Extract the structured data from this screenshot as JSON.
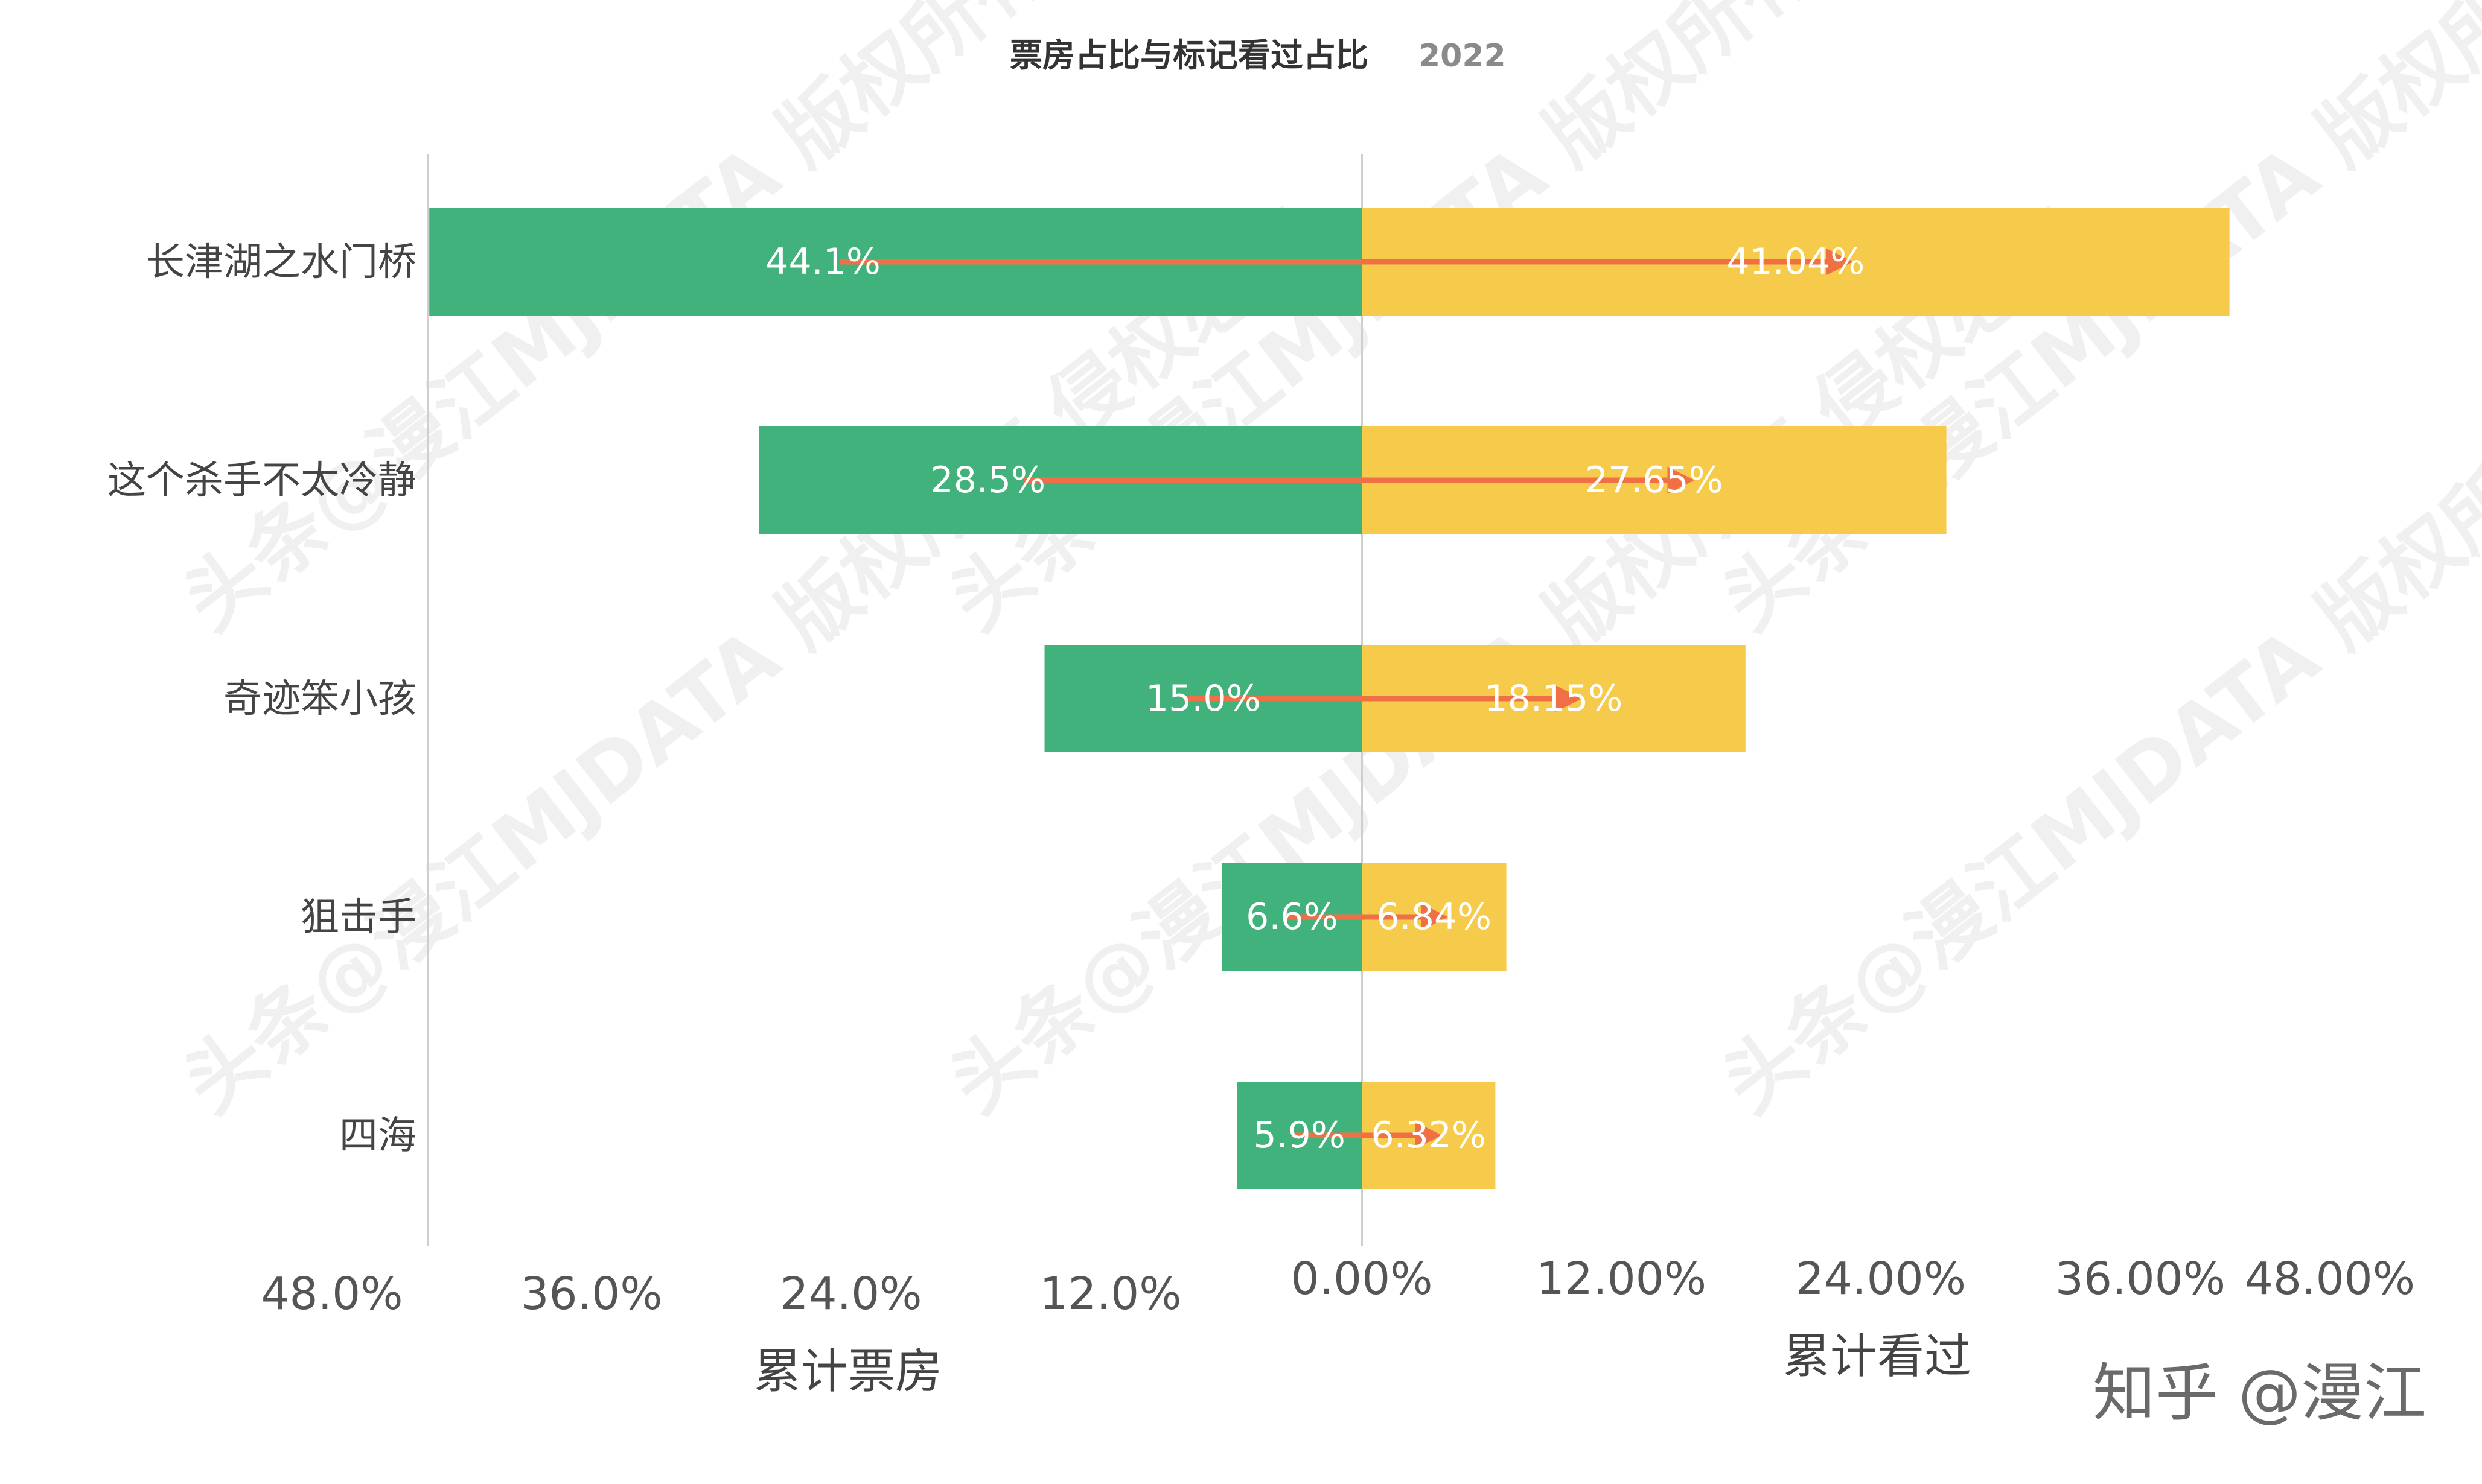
{
  "chart_data": {
    "type": "bar",
    "orientation": "horizontal-diverging",
    "title": "票房占比与标记看过占比",
    "subtitle": "2022",
    "categories": [
      "长津湖之水门桥",
      "这个杀手不太冷静",
      "奇迹笨小孩",
      "狙击手",
      "四海"
    ],
    "series": [
      {
        "name": "累计票房",
        "side": "left",
        "color": "#41b27b",
        "values": [
          44.1,
          28.5,
          15.0,
          6.6,
          5.9
        ],
        "labels": [
          "44.1%",
          "28.5%",
          "15.0%",
          "6.6%",
          "5.9%"
        ]
      },
      {
        "name": "累计看过",
        "side": "right",
        "color": "#f6cb4b",
        "values": [
          41.04,
          27.65,
          18.15,
          6.84,
          6.32
        ],
        "labels": [
          "41.04%",
          "27.65%",
          "18.15%",
          "6.84%",
          "6.32%"
        ]
      }
    ],
    "left_axis": {
      "title": "累计票房",
      "ticks": [
        "48.0%",
        "36.0%",
        "24.0%",
        "12.0%"
      ],
      "max": 48
    },
    "right_axis": {
      "title": "累计看过",
      "ticks": [
        "0.00%",
        "12.00%",
        "24.00%",
        "36.00%",
        "48.00%"
      ],
      "max": 48
    },
    "arrow_color": "#f07045",
    "grid": false,
    "legend": "none"
  },
  "watermark": "头条@漫江MJDATA 版权所有 侵权必究",
  "credit": "知乎 @漫江"
}
